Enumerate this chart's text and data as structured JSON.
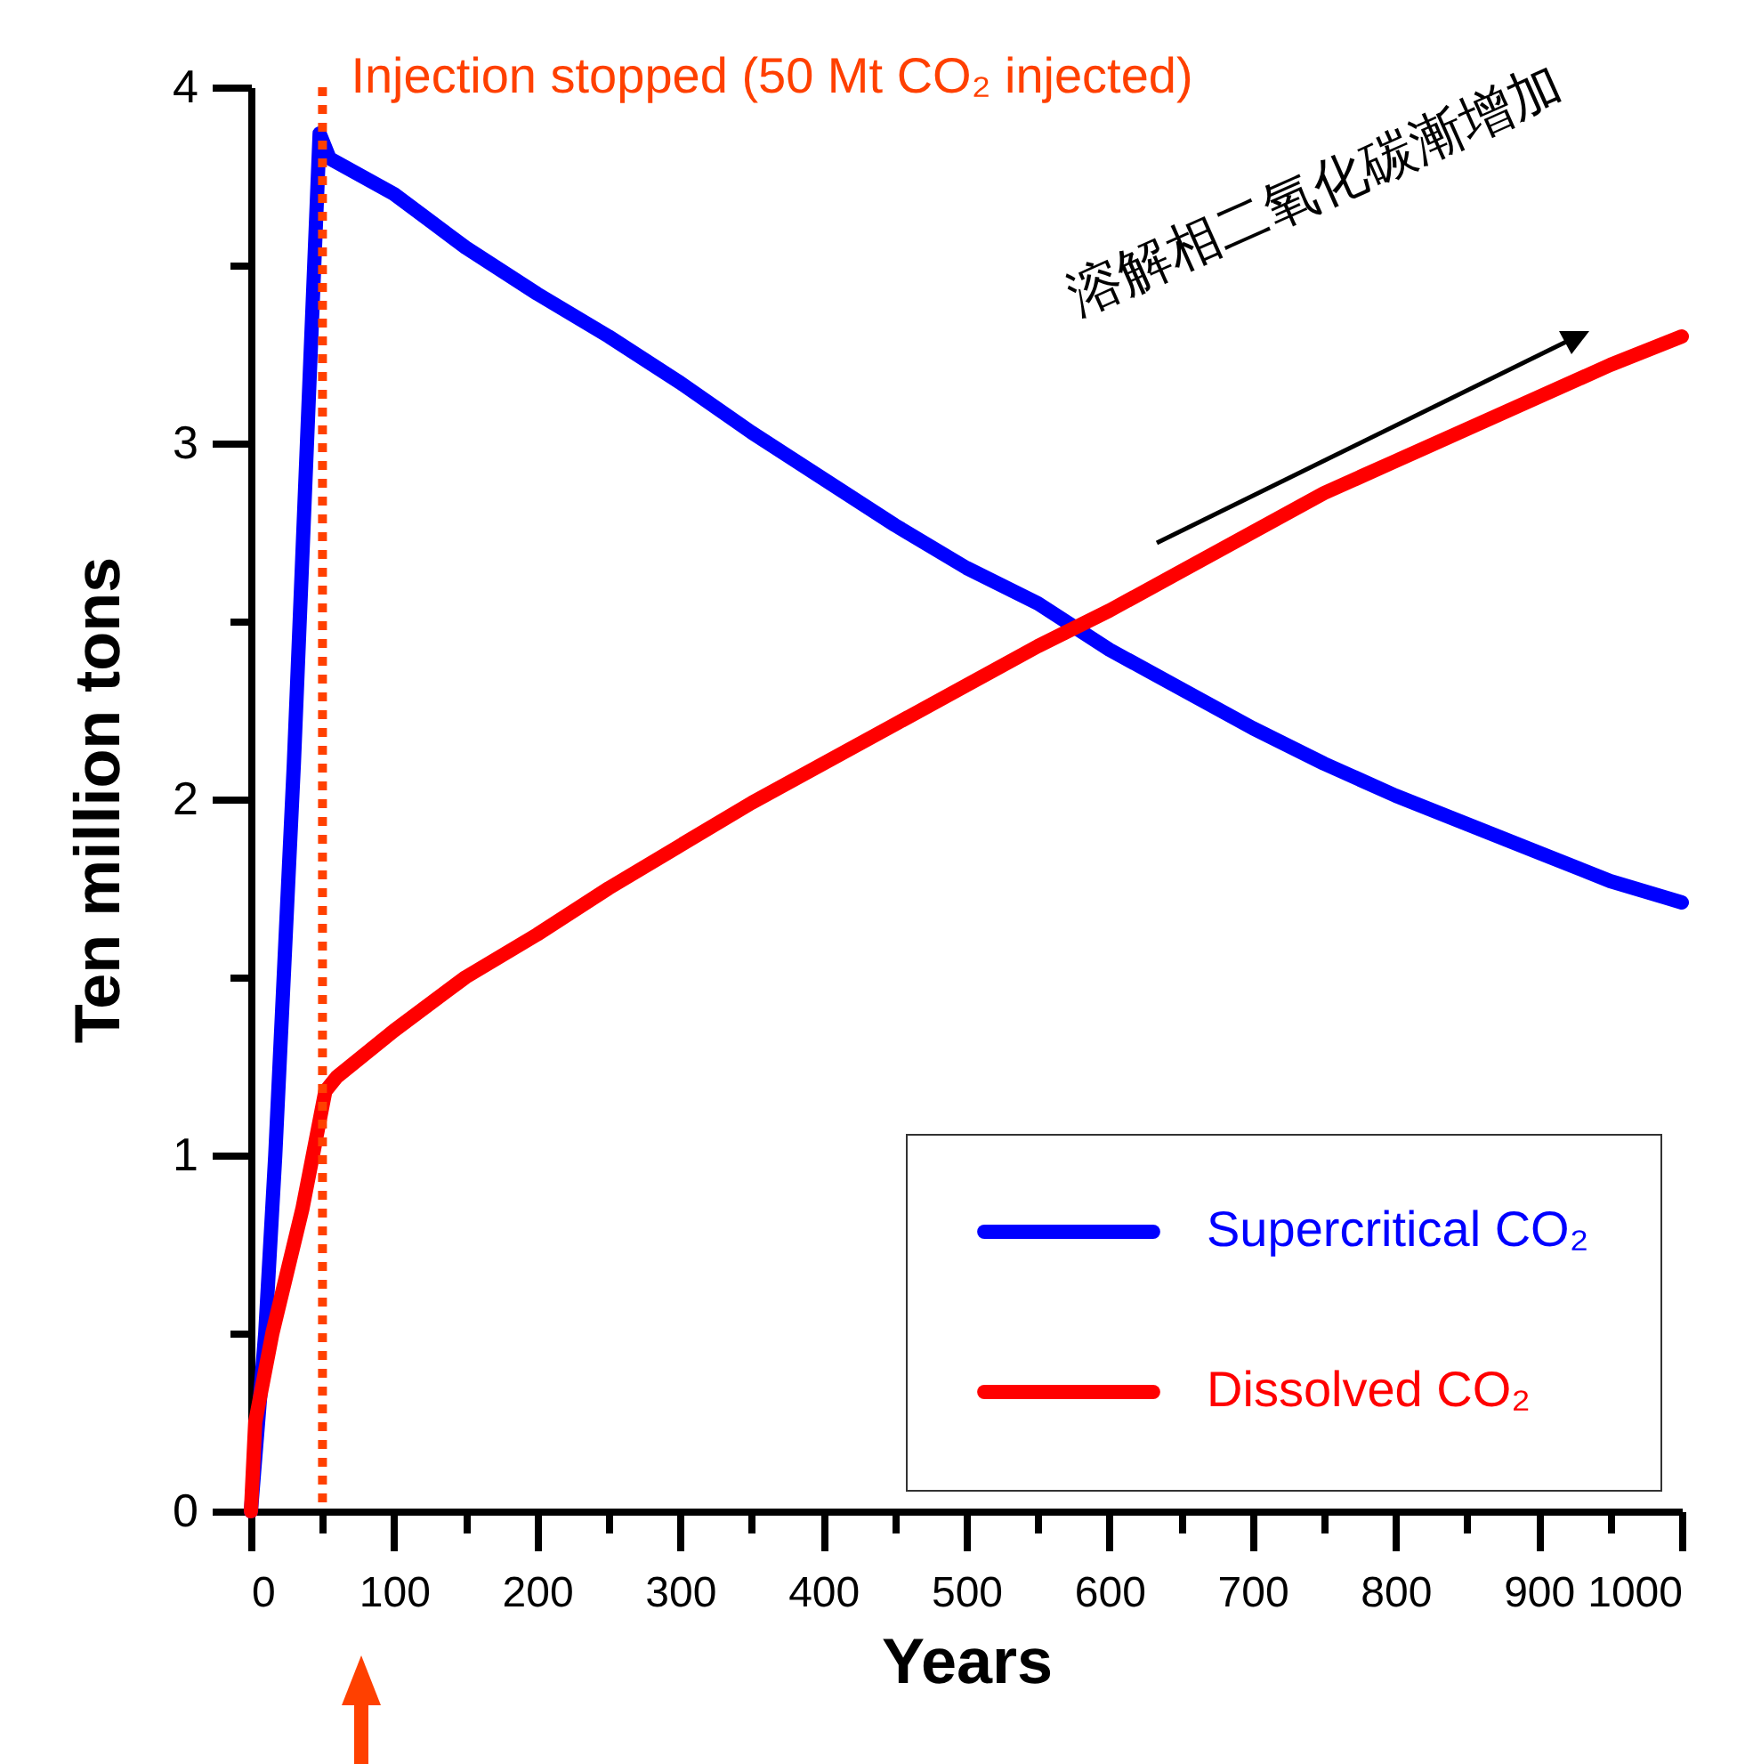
{
  "chart_data": {
    "type": "line",
    "xlabel": "Years",
    "ylabel": "Ten million tons",
    "legend": "bottom right",
    "line_style": "solid",
    "xlim": [
      0,
      1000
    ],
    "ylim": [
      0,
      4
    ],
    "xticks": [
      0,
      {
        "value": 50,
        "label": null
      },
      100,
      {
        "value": 150,
        "label": null
      },
      200,
      {
        "value": 250,
        "label": null
      },
      300,
      {
        "value": 350,
        "label": null
      },
      400,
      {
        "value": 450,
        "label": null
      },
      500,
      {
        "value": 550,
        "label": null
      },
      600,
      {
        "value": 650,
        "label": null
      },
      700,
      {
        "value": 750,
        "label": null
      },
      800,
      {
        "value": 850,
        "label": null
      },
      900,
      {
        "value": 950,
        "label": null
      },
      1000
    ],
    "yticks": [
      0,
      {
        "value": 0.5,
        "label": null
      },
      1,
      {
        "value": 1.5,
        "label": null
      },
      2,
      {
        "value": 2.5,
        "label": null
      },
      3,
      {
        "value": 3.5,
        "label": null
      },
      4
    ],
    "series": [
      {
        "name": "Supercritical CO₂",
        "color": "#0000ff",
        "x": [
          0,
          10,
          17,
          30,
          48,
          55,
          100,
          150,
          200,
          250,
          300,
          350,
          400,
          450,
          500,
          550,
          600,
          650,
          700,
          750,
          800,
          850,
          900,
          950,
          1000
        ],
        "values": [
          0,
          0.5,
          1,
          2.1,
          3.87,
          3.8,
          3.7,
          3.55,
          3.42,
          3.3,
          3.17,
          3.03,
          2.9,
          2.77,
          2.65,
          2.55,
          2.42,
          2.31,
          2.2,
          2.1,
          2.01,
          1.93,
          1.85,
          1.77,
          1.71
        ]
      },
      {
        "name": "Dissolved CO₂",
        "color": "#ff0000",
        "x": [
          0,
          3,
          15,
          36,
          52,
          60,
          100,
          150,
          200,
          250,
          300,
          350,
          400,
          450,
          500,
          550,
          600,
          650,
          700,
          750,
          800,
          850,
          900,
          950,
          1000
        ],
        "values": [
          0,
          0.25,
          0.5,
          0.85,
          1.18,
          1.22,
          1.35,
          1.5,
          1.62,
          1.75,
          1.87,
          1.99,
          2.1,
          2.21,
          2.32,
          2.43,
          2.53,
          2.64,
          2.75,
          2.86,
          2.95,
          3.04,
          3.13,
          3.22,
          3.3
        ]
      }
    ],
    "ref_lines": [
      {
        "axis": "x",
        "value": 50,
        "label": "Injection stopped (50 Mt CO₂ injected)",
        "color": "#ff4000",
        "line_style": "dotted"
      }
    ],
    "annotations": [
      "溶解相二氧化碳漸增加"
    ]
  }
}
